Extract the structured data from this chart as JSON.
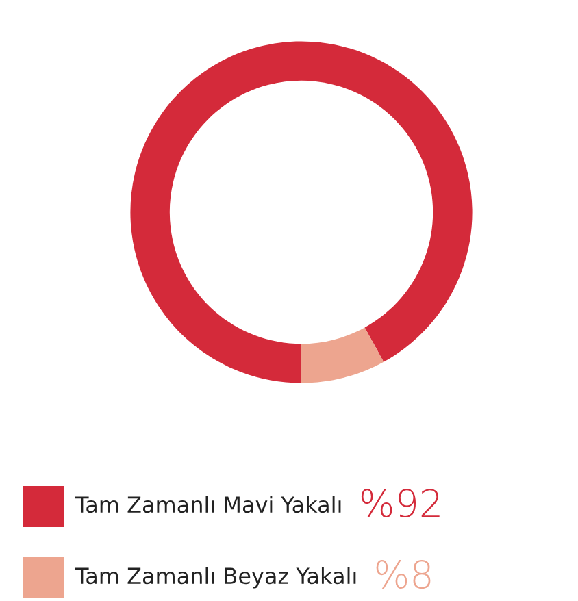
{
  "chart_data": {
    "type": "donut",
    "categories": [
      "Tam Zamanlı Mavi Yakalı",
      "Tam Zamanlı Beyaz Yakalı"
    ],
    "values": [
      92,
      8
    ],
    "colors": [
      "#d42a3a",
      "#eda58f"
    ],
    "value_labels": [
      "%92",
      "%8"
    ],
    "legend": "bottom"
  }
}
